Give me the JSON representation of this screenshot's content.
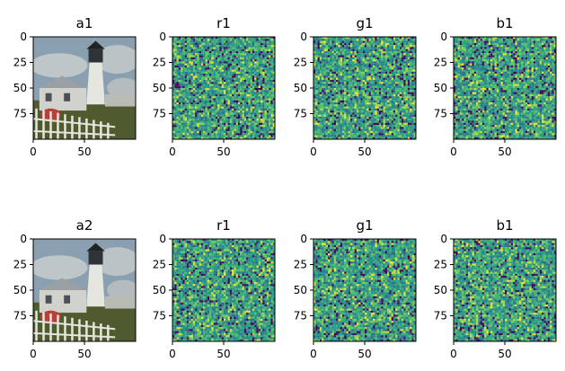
{
  "figure": {
    "panels": [
      {
        "title": "a1",
        "kind": "photo"
      },
      {
        "title": "r1",
        "kind": "noise"
      },
      {
        "title": "g1",
        "kind": "noise"
      },
      {
        "title": "b1",
        "kind": "noise"
      },
      {
        "title": "a2",
        "kind": "photo"
      },
      {
        "title": "r1",
        "kind": "noise"
      },
      {
        "title": "g1",
        "kind": "noise"
      },
      {
        "title": "b1",
        "kind": "noise"
      }
    ]
  },
  "chart_data": {
    "type": "heatmap",
    "layout": "2x4 grid of image panels",
    "x_ticks": [
      "0",
      "50"
    ],
    "y_ticks": [
      "0",
      "25",
      "50",
      "75"
    ],
    "xlim": [
      0,
      100
    ],
    "ylim": [
      100,
      0
    ],
    "colormap": "viridis",
    "photo_colors": {
      "sky": "#8aa0b0",
      "cloud": "#c8cccc",
      "lighthouse": "#e6e6e0",
      "house": "#d2d2cc",
      "grass": "#4f5b2e",
      "fence": "#e4e4e0",
      "flowers": "#b5423a"
    }
  }
}
